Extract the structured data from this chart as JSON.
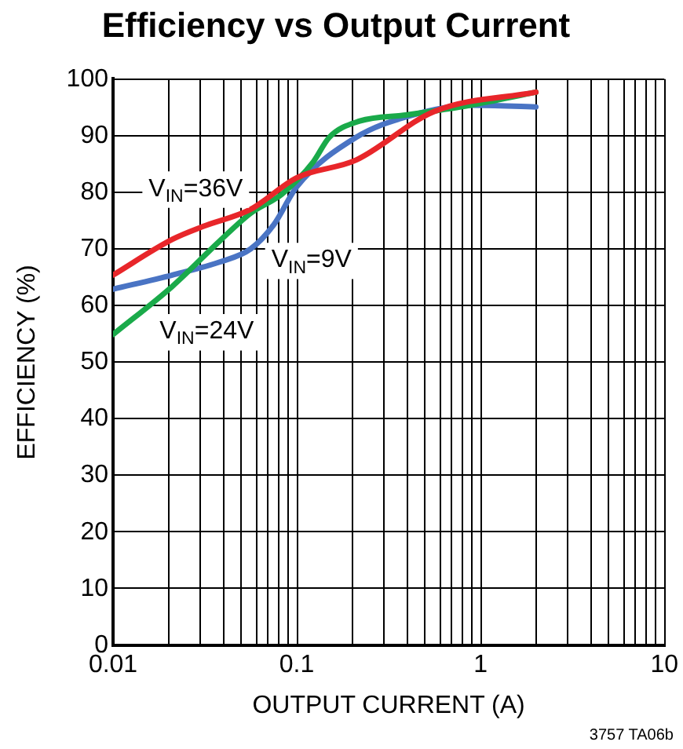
{
  "chart_data": {
    "type": "line",
    "title": "Efficiency vs Output Current",
    "xlabel": "OUTPUT CURRENT (A)",
    "ylabel": "EFFICIENCY (%)",
    "log": "x",
    "grid": true,
    "legend": false,
    "marker": "none",
    "line_style": "solid",
    "xlim": [
      0.01,
      10
    ],
    "ylim": [
      0,
      100
    ],
    "xticks": [
      0.01,
      {
        "value": 0.02,
        "label": null
      },
      {
        "value": 0.03,
        "label": null
      },
      {
        "value": 0.04,
        "label": null
      },
      {
        "value": 0.05,
        "label": null
      },
      {
        "value": 0.06,
        "label": null
      },
      {
        "value": 0.07,
        "label": null
      },
      {
        "value": 0.08,
        "label": null
      },
      {
        "value": 0.09,
        "label": null
      },
      0.1,
      {
        "value": 0.2,
        "label": null
      },
      {
        "value": 0.3,
        "label": null
      },
      {
        "value": 0.4,
        "label": null
      },
      {
        "value": 0.5,
        "label": null
      },
      {
        "value": 0.6,
        "label": null
      },
      {
        "value": 0.7,
        "label": null
      },
      {
        "value": 0.8,
        "label": null
      },
      {
        "value": 0.9,
        "label": null
      },
      1,
      {
        "value": 2,
        "label": null
      },
      {
        "value": 3,
        "label": null
      },
      {
        "value": 4,
        "label": null
      },
      {
        "value": 5,
        "label": null
      },
      {
        "value": 6,
        "label": null
      },
      {
        "value": 7,
        "label": null
      },
      {
        "value": 8,
        "label": null
      },
      {
        "value": 9,
        "label": null
      },
      10
    ],
    "yticks": [
      0,
      10,
      20,
      30,
      40,
      50,
      60,
      70,
      80,
      90,
      100
    ],
    "series": [
      {
        "color": "#4a74c4",
        "x": [
          0.01,
          0.021,
          0.038,
          0.056,
          0.075,
          0.1,
          0.21,
          0.4,
          0.88,
          2.0
        ],
        "values": [
          62.9,
          65.4,
          67.7,
          70,
          74.3,
          81,
          89.7,
          93.4,
          95.4,
          95.1
        ]
      },
      {
        "color": "#1aaa4a",
        "x": [
          0.01,
          0.021,
          0.038,
          0.056,
          0.083,
          0.123,
          0.15,
          0.22,
          0.4,
          0.88,
          2.0
        ],
        "values": [
          54.9,
          63.4,
          71.4,
          76.3,
          79.7,
          85.4,
          89.7,
          92.6,
          93.7,
          95.4,
          97.7
        ]
      },
      {
        "color": "#e8262a",
        "x": [
          0.01,
          0.021,
          0.031,
          0.056,
          0.1,
          0.21,
          0.56,
          2.0
        ],
        "values": [
          65.4,
          71.7,
          74,
          77,
          82.6,
          85.7,
          94.3,
          97.7
        ]
      }
    ],
    "annotations": [
      "V$_{IN}$=36V",
      "V$_{IN}$=9V",
      "V$_{IN}$=24V",
      "3757 TA06b"
    ]
  }
}
